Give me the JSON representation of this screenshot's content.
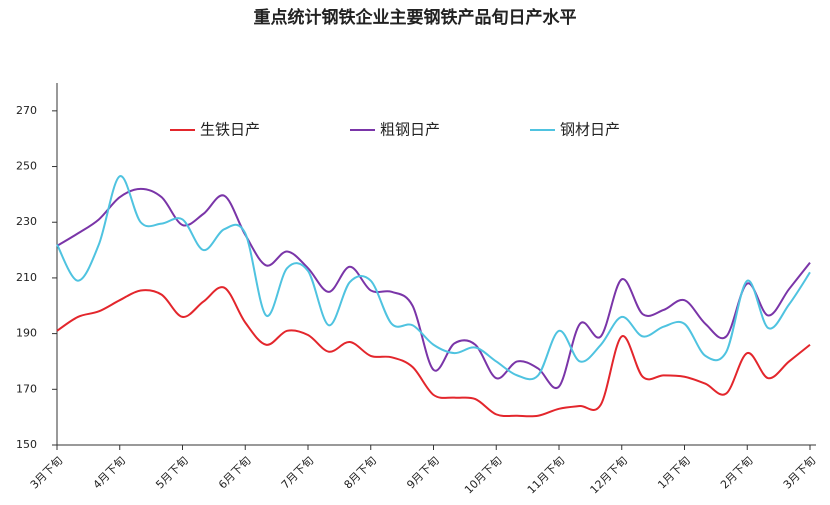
{
  "chart_data": {
    "type": "line",
    "title": "重点统计钢铁企业主要钢铁产品旬日产水平",
    "categories": [
      "3月下旬",
      null,
      null,
      "4月下旬",
      null,
      null,
      "5月下旬",
      null,
      null,
      "6月下旬",
      null,
      null,
      "7月下旬",
      null,
      null,
      "8月下旬",
      null,
      null,
      "9月下旬",
      null,
      null,
      "10月下旬",
      null,
      null,
      "11月下旬",
      null,
      null,
      "12月下旬",
      null,
      null,
      "1月下旬",
      null,
      null,
      "2月下旬",
      null,
      null,
      "3月下旬"
    ],
    "series": [
      {
        "name": "生铁日产",
        "color": "#e3262c",
        "values": [
          191,
          196,
          198,
          202,
          205.5,
          204,
          196,
          201.5,
          206.5,
          194,
          186,
          191,
          189.5,
          183.5,
          187,
          182,
          181.5,
          178,
          168,
          167,
          166.5,
          161,
          160.5,
          160.5,
          163,
          164,
          164.5,
          189,
          174.5,
          175,
          174.5,
          172,
          168.5,
          183,
          174,
          180,
          186
        ]
      },
      {
        "name": "粗钢日产",
        "color": "#7a35a8",
        "values": [
          221.5,
          226,
          231,
          239,
          242,
          239,
          229,
          233,
          239.5,
          225.5,
          214.5,
          219.5,
          213.5,
          205,
          214,
          205.5,
          205,
          200,
          177,
          186.5,
          186,
          174,
          180,
          177.5,
          171,
          193.5,
          189,
          209.5,
          197,
          198.5,
          202,
          193.5,
          189,
          208,
          196.5,
          206,
          215.5
        ]
      },
      {
        "name": "钢材日产",
        "color": "#4fc3e0",
        "values": [
          222,
          209,
          222,
          246.5,
          230,
          229.5,
          231,
          220,
          227.5,
          226,
          196.5,
          213.5,
          212.5,
          193,
          208.5,
          209,
          193.5,
          193,
          186,
          183,
          185,
          180,
          175,
          175,
          191,
          180,
          186,
          196,
          189,
          192.5,
          193.5,
          182,
          183.5,
          209,
          192,
          200.5,
          212
        ]
      }
    ],
    "ylim": [
      150,
      280
    ],
    "yticks": [
      150,
      170,
      190,
      210,
      230,
      250,
      270
    ],
    "legend": "top",
    "grid": false
  }
}
